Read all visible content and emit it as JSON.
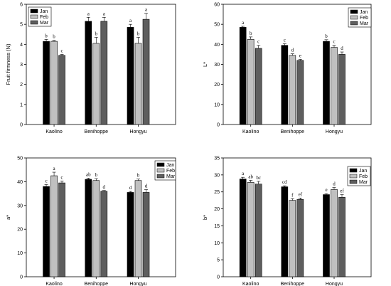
{
  "colors": {
    "Jan": "#000000",
    "Feb": "#c0c0c0",
    "Mar": "#5e5e5e",
    "axis": "#000000"
  },
  "chart_data": [
    {
      "type": "bar",
      "panel": "top-left",
      "xlabel": "",
      "ylabel": "Fruit firmness (N)",
      "ylim": [
        0,
        6
      ],
      "yticks": [
        "0",
        "1",
        "2",
        "3",
        "4",
        "5",
        "6"
      ],
      "categories": [
        "Kaolino",
        "Benihoppe",
        "Hongyu"
      ],
      "legend_position": "top-left",
      "grid": false,
      "series": [
        {
          "name": "Jan",
          "values": [
            4.15,
            5.15,
            4.85
          ],
          "errors": [
            0.1,
            0.2,
            0.15
          ],
          "letters": [
            "b",
            "a",
            "a"
          ]
        },
        {
          "name": "Feb",
          "values": [
            4.15,
            4.05,
            4.05
          ],
          "errors": [
            0.05,
            0.3,
            0.3
          ],
          "letters": [
            "b",
            "b",
            "b"
          ]
        },
        {
          "name": "Mar",
          "values": [
            3.45,
            5.15,
            5.25
          ],
          "errors": [
            0.05,
            0.2,
            0.3
          ],
          "letters": [
            "c",
            "a",
            "a"
          ]
        }
      ]
    },
    {
      "type": "bar",
      "panel": "top-right",
      "xlabel": "",
      "ylabel": "L*",
      "ylim": [
        0,
        60
      ],
      "yticks": [
        "0",
        "10",
        "20",
        "30",
        "40",
        "50",
        "60"
      ],
      "categories": [
        "Kaolino",
        "Benihoppe",
        "Hongyu"
      ],
      "legend_position": "top-right",
      "grid": false,
      "series": [
        {
          "name": "Jan",
          "values": [
            48.5,
            39.5,
            41.5
          ],
          "errors": [
            0.5,
            0.8,
            0.8
          ],
          "letters": [
            "a",
            "c",
            "b"
          ]
        },
        {
          "name": "Feb",
          "values": [
            42.5,
            34.5,
            38.5
          ],
          "errors": [
            1.2,
            0.8,
            1.0
          ],
          "letters": [
            "b",
            "d",
            "c"
          ]
        },
        {
          "name": "Mar",
          "values": [
            38.0,
            32.0,
            35.0
          ],
          "errors": [
            1.5,
            0.5,
            1.2
          ],
          "letters": [
            "c",
            "e",
            "d"
          ]
        }
      ]
    },
    {
      "type": "bar",
      "panel": "bottom-left",
      "xlabel": "",
      "ylabel": "a*",
      "ylim": [
        0,
        50
      ],
      "yticks": [
        "0",
        "10",
        "20",
        "30",
        "40",
        "50"
      ],
      "categories": [
        "Kaolino",
        "Benihoppe",
        "Hongyu"
      ],
      "legend_position": "top-right",
      "grid": false,
      "series": [
        {
          "name": "Jan",
          "values": [
            38.0,
            41.0,
            35.5
          ],
          "errors": [
            0.8,
            0.5,
            0.4
          ],
          "letters": [
            "c",
            "ab",
            "d"
          ]
        },
        {
          "name": "Feb",
          "values": [
            42.5,
            40.5,
            40.5
          ],
          "errors": [
            1.5,
            0.8,
            0.6
          ],
          "letters": [
            "a",
            "b",
            "b"
          ]
        },
        {
          "name": "Mar",
          "values": [
            39.5,
            36.0,
            35.5
          ],
          "errors": [
            0.8,
            0.3,
            1.2
          ],
          "letters": [
            "c",
            "d",
            "d"
          ]
        }
      ]
    },
    {
      "type": "bar",
      "panel": "bottom-right",
      "xlabel": "",
      "ylabel": "b*",
      "ylim": [
        0,
        35
      ],
      "yticks": [
        "0",
        "5",
        "10",
        "15",
        "20",
        "25",
        "30",
        "35"
      ],
      "categories": [
        "Kaolino",
        "Benihoppe",
        "Hongyu"
      ],
      "legend_position": "top-right",
      "grid": false,
      "series": [
        {
          "name": "Jan",
          "values": [
            28.8,
            26.5,
            24.2
          ],
          "errors": [
            0.5,
            0.3,
            0.3
          ],
          "letters": [
            "a",
            "cd",
            "e"
          ]
        },
        {
          "name": "Feb",
          "values": [
            27.8,
            22.5,
            25.7
          ],
          "errors": [
            0.6,
            0.5,
            0.6
          ],
          "letters": [
            "ab",
            "f",
            "d"
          ]
        },
        {
          "name": "Mar",
          "values": [
            27.3,
            22.8,
            23.4
          ],
          "errors": [
            0.8,
            0.4,
            0.8
          ],
          "letters": [
            "bc",
            "ef",
            "ef"
          ]
        }
      ]
    }
  ]
}
